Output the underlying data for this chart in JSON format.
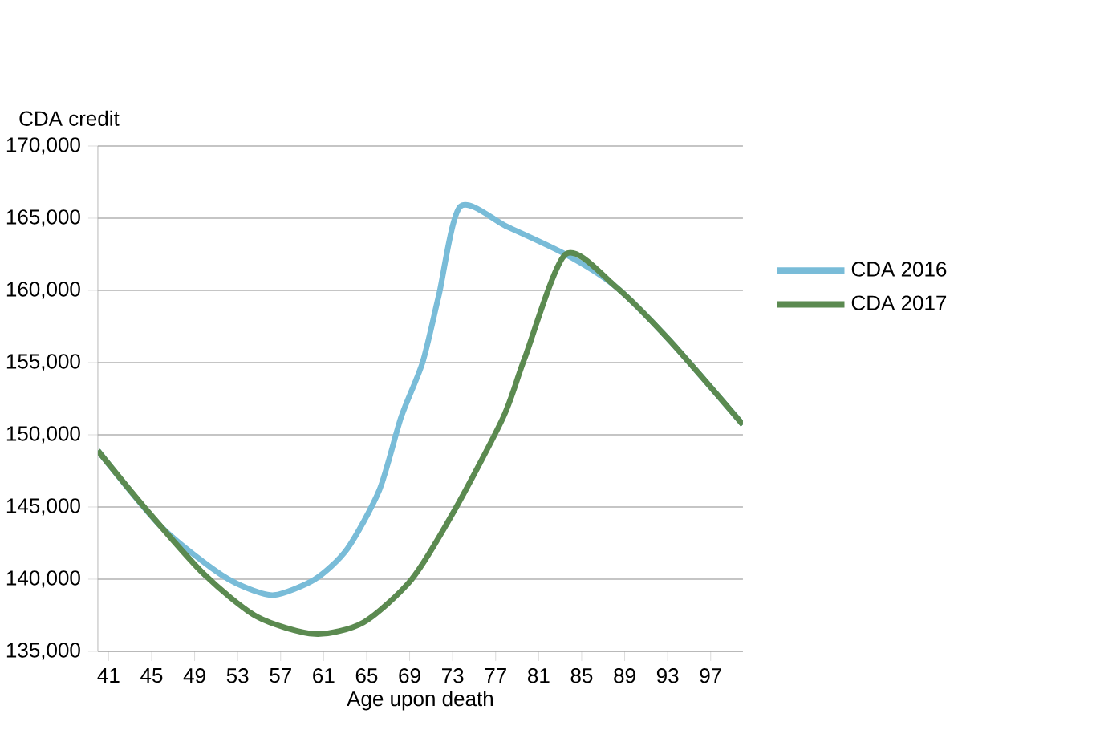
{
  "chart_data": {
    "type": "line",
    "xlabel": "Age upon death",
    "ylabel": "CDA credit",
    "xlim": [
      40,
      100
    ],
    "xticks": [
      41,
      45,
      49,
      53,
      57,
      61,
      65,
      69,
      73,
      77,
      81,
      85,
      89,
      93,
      97
    ],
    "ylim": [
      135000,
      170000
    ],
    "yticks": [
      {
        "value": 135000,
        "label": "135,000"
      },
      {
        "value": 140000,
        "label": "140,000"
      },
      {
        "value": 145000,
        "label": "145,000"
      },
      {
        "value": 150000,
        "label": "150,000"
      },
      {
        "value": 155000,
        "label": "155,000"
      },
      {
        "value": 160000,
        "label": "160,000"
      },
      {
        "value": 165000,
        "label": "165,000"
      },
      {
        "value": 170000,
        "label": "170,000"
      }
    ],
    "grid": "y",
    "legend": "right",
    "series": [
      {
        "name": "CDA 2016",
        "color": "#79bcd8",
        "x": [
          40,
          45.8,
          50.9,
          53.5,
          56.4,
          60.2,
          63.2,
          66.2,
          68.2,
          70.2,
          71.7,
          73.7,
          78.1,
          83.5,
          88.1,
          93.1,
          100
        ],
        "values": [
          148900,
          143700,
          140600,
          139500,
          138900,
          140000,
          142100,
          146200,
          151200,
          155000,
          159600,
          165800,
          164400,
          162500,
          160300,
          156600,
          150700
        ]
      },
      {
        "name": "CDA 2017",
        "color": "#5b8a50",
        "x": [
          40,
          44.3,
          49.8,
          54.8,
          60.2,
          64.7,
          69.2,
          73.2,
          77.7,
          79.7,
          83.5,
          88.1,
          93.1,
          100
        ],
        "values": [
          148900,
          145000,
          140400,
          137400,
          136200,
          137000,
          140000,
          144800,
          151200,
          155300,
          162500,
          160300,
          156600,
          150700
        ]
      }
    ]
  }
}
